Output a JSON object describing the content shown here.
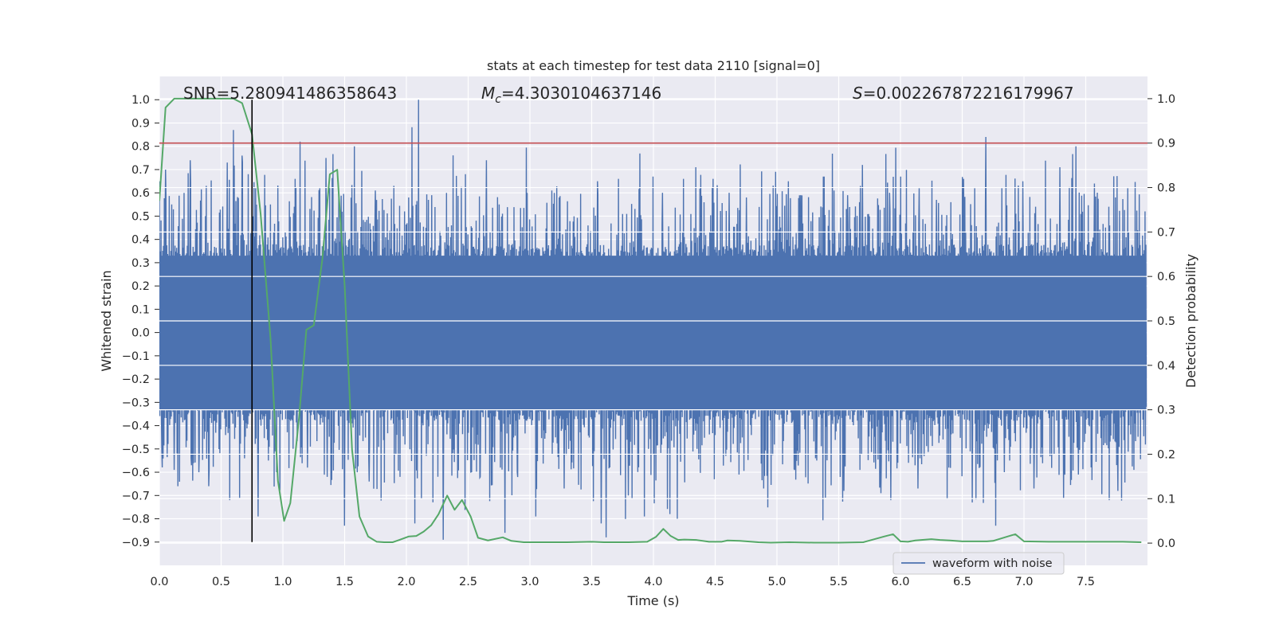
{
  "chart_data": {
    "type": "line",
    "title": "stats at each timestep for test data 2110 [signal=0]",
    "xlabel": "Time (s)",
    "ylabel": "Whitened strain",
    "ylabel_right": "Detection probability",
    "xlim": [
      0.0,
      8.0
    ],
    "ylim": [
      -1.0,
      1.1
    ],
    "ylim_right": [
      -0.05,
      1.05
    ],
    "x_ticks": [
      0.0,
      0.5,
      1.0,
      1.5,
      2.0,
      2.5,
      3.0,
      3.5,
      4.0,
      4.5,
      5.0,
      5.5,
      6.0,
      6.5,
      7.0,
      7.5
    ],
    "x_tick_labels": [
      "0.0",
      "0.5",
      "1.0",
      "1.5",
      "2.0",
      "2.5",
      "3.0",
      "3.5",
      "4.0",
      "4.5",
      "5.0",
      "5.5",
      "6.0",
      "6.5",
      "7.0",
      "7.5"
    ],
    "y_ticks": [
      -0.9,
      -0.8,
      -0.7,
      -0.6,
      -0.5,
      -0.4,
      -0.3,
      -0.2,
      -0.1,
      0.0,
      0.1,
      0.2,
      0.3,
      0.4,
      0.5,
      0.6,
      0.7,
      0.8,
      0.9,
      1.0
    ],
    "y_tick_labels": [
      "−0.9",
      "−0.8",
      "−0.7",
      "−0.6",
      "−0.5",
      "−0.4",
      "−0.3",
      "−0.2",
      "−0.1",
      "0.0",
      "0.1",
      "0.2",
      "0.3",
      "0.4",
      "0.5",
      "0.6",
      "0.7",
      "0.8",
      "0.9",
      "1.0"
    ],
    "y_right_ticks": [
      0.0,
      0.1,
      0.2,
      0.3,
      0.4,
      0.5,
      0.6,
      0.7,
      0.8,
      0.9,
      1.0
    ],
    "y_right_tick_labels": [
      "0.0",
      "0.1",
      "0.2",
      "0.3",
      "0.4",
      "0.5",
      "0.6",
      "0.7",
      "0.8",
      "0.9",
      "1.0"
    ],
    "grid": true,
    "legend_position": "lower-right",
    "annotations": {
      "snr": "SNR=5.280941486358643",
      "mc_symbol": "M",
      "mc_sub": "c",
      "mc_value": "=4.3030104637146",
      "s_symbol": "S",
      "s_value": "=0.002267872216179967"
    },
    "threshold": {
      "axis": "right",
      "y": 0.9,
      "color": "#c44e52"
    },
    "marker_line": {
      "x": 0.75,
      "y_range": [
        -0.9,
        1.0
      ],
      "color": "#000000"
    },
    "series": [
      {
        "name": "waveform with noise",
        "axis": "left",
        "color": "#4c72b0",
        "sample_count": 2400,
        "dense_band": [
          -0.33,
          0.33
        ],
        "peaks_positive": [
          [
            0.0,
            0.65
          ],
          [
            0.05,
            0.7
          ],
          [
            0.1,
            0.55
          ],
          [
            0.2,
            0.6
          ],
          [
            0.25,
            0.74
          ],
          [
            0.38,
            0.63
          ],
          [
            0.55,
            0.73
          ],
          [
            0.6,
            0.87
          ],
          [
            0.67,
            0.76
          ],
          [
            0.72,
            0.68
          ],
          [
            0.78,
            0.62
          ],
          [
            0.9,
            0.55
          ],
          [
            1.1,
            0.66
          ],
          [
            1.14,
            0.82
          ],
          [
            1.3,
            0.62
          ],
          [
            1.35,
            0.75
          ],
          [
            1.58,
            0.8
          ],
          [
            1.75,
            0.61
          ],
          [
            1.9,
            0.63
          ],
          [
            2.02,
            0.58
          ],
          [
            2.1,
            1.0
          ],
          [
            2.18,
            0.57
          ],
          [
            2.48,
            0.68
          ],
          [
            2.6,
            0.61
          ],
          [
            2.65,
            0.74
          ],
          [
            2.9,
            0.71
          ],
          [
            2.98,
            0.6
          ],
          [
            3.2,
            0.6
          ],
          [
            3.55,
            0.65
          ],
          [
            3.72,
            0.66
          ],
          [
            3.8,
            0.58
          ],
          [
            3.93,
            0.6
          ],
          [
            4.0,
            0.67
          ],
          [
            4.08,
            0.6
          ],
          [
            4.25,
            0.66
          ],
          [
            4.35,
            0.71
          ],
          [
            4.49,
            0.66
          ],
          [
            4.62,
            0.6
          ],
          [
            4.76,
            0.58
          ],
          [
            4.9,
            0.68
          ],
          [
            5.1,
            0.65
          ],
          [
            5.2,
            0.59
          ],
          [
            5.39,
            0.67
          ],
          [
            5.58,
            0.59
          ],
          [
            5.7,
            0.72
          ],
          [
            5.92,
            0.6
          ],
          [
            6.01,
            0.67
          ],
          [
            6.16,
            0.62
          ],
          [
            6.3,
            0.57
          ],
          [
            6.52,
            0.66
          ],
          [
            6.61,
            0.62
          ],
          [
            6.7,
            0.84
          ],
          [
            6.83,
            0.62
          ],
          [
            7.0,
            0.65
          ],
          [
            7.3,
            0.71
          ],
          [
            7.43,
            0.8
          ],
          [
            7.58,
            0.64
          ],
          [
            7.75,
            0.58
          ],
          [
            7.85,
            0.62
          ]
        ],
        "peaks_negative": [
          [
            0.02,
            -0.51
          ],
          [
            0.12,
            -0.59
          ],
          [
            0.15,
            -0.66
          ],
          [
            0.26,
            -0.57
          ],
          [
            0.32,
            -0.6
          ],
          [
            0.4,
            -0.66
          ],
          [
            0.57,
            -0.72
          ],
          [
            0.65,
            -0.71
          ],
          [
            0.8,
            -0.79
          ],
          [
            0.95,
            -0.6
          ],
          [
            1.2,
            -0.58
          ],
          [
            1.36,
            -0.62
          ],
          [
            1.5,
            -0.83
          ],
          [
            1.7,
            -0.64
          ],
          [
            1.95,
            -0.62
          ],
          [
            2.07,
            -0.82
          ],
          [
            2.3,
            -0.89
          ],
          [
            2.53,
            -0.6
          ],
          [
            2.6,
            -0.62
          ],
          [
            2.8,
            -0.86
          ],
          [
            2.9,
            -0.6
          ],
          [
            3.05,
            -0.79
          ],
          [
            3.28,
            -0.67
          ],
          [
            3.58,
            -0.82
          ],
          [
            3.62,
            -0.88
          ],
          [
            3.8,
            -0.7
          ],
          [
            3.93,
            -0.79
          ],
          [
            4.14,
            -0.78
          ],
          [
            4.2,
            -0.8
          ],
          [
            4.5,
            -0.63
          ],
          [
            4.7,
            -0.61
          ],
          [
            4.9,
            -0.67
          ],
          [
            5.15,
            -0.59
          ],
          [
            5.33,
            -0.55
          ],
          [
            5.55,
            -0.68
          ],
          [
            5.68,
            -0.59
          ],
          [
            5.85,
            -0.69
          ],
          [
            5.93,
            -0.72
          ],
          [
            6.15,
            -0.67
          ],
          [
            6.4,
            -0.58
          ],
          [
            6.59,
            -0.73
          ],
          [
            6.78,
            -0.83
          ],
          [
            6.85,
            -0.6
          ],
          [
            7.09,
            -0.67
          ],
          [
            7.33,
            -0.71
          ],
          [
            7.45,
            -0.61
          ],
          [
            7.7,
            -0.72
          ],
          [
            7.77,
            -0.68
          ],
          [
            7.9,
            -0.59
          ]
        ]
      },
      {
        "name": "",
        "axis": "right",
        "color": "#55a868",
        "x": [
          0.0,
          0.05,
          0.12,
          0.2,
          0.3,
          0.4,
          0.5,
          0.6,
          0.67,
          0.75,
          0.82,
          0.9,
          0.96,
          1.01,
          1.06,
          1.13,
          1.19,
          1.25,
          1.32,
          1.38,
          1.44,
          1.5,
          1.56,
          1.62,
          1.69,
          1.76,
          1.82,
          1.89,
          1.95,
          2.02,
          2.08,
          2.14,
          2.2,
          2.26,
          2.33,
          2.39,
          2.45,
          2.52,
          2.58,
          2.66,
          2.78,
          2.85,
          2.95,
          3.1,
          3.3,
          3.5,
          3.6,
          3.8,
          3.95,
          4.02,
          4.08,
          4.14,
          4.2,
          4.25,
          4.35,
          4.45,
          4.55,
          4.6,
          4.7,
          4.85,
          4.95,
          5.1,
          5.3,
          5.5,
          5.7,
          5.87,
          5.94,
          6.0,
          6.06,
          6.12,
          6.25,
          6.32,
          6.4,
          6.5,
          6.6,
          6.7,
          6.75,
          6.88,
          6.93,
          7.0,
          7.2,
          7.5,
          7.8,
          7.95
        ],
        "values": [
          0.77,
          0.98,
          1.0,
          1.0,
          1.0,
          1.0,
          1.0,
          1.0,
          0.99,
          0.92,
          0.74,
          0.46,
          0.14,
          0.05,
          0.09,
          0.28,
          0.48,
          0.49,
          0.64,
          0.83,
          0.84,
          0.58,
          0.21,
          0.06,
          0.015,
          0.003,
          0.002,
          0.002,
          0.008,
          0.015,
          0.016,
          0.026,
          0.04,
          0.065,
          0.107,
          0.075,
          0.097,
          0.06,
          0.012,
          0.006,
          0.013,
          0.005,
          0.002,
          0.002,
          0.002,
          0.003,
          0.002,
          0.002,
          0.003,
          0.014,
          0.032,
          0.016,
          0.007,
          0.008,
          0.007,
          0.003,
          0.003,
          0.006,
          0.005,
          0.002,
          0.001,
          0.002,
          0.001,
          0.001,
          0.002,
          0.015,
          0.02,
          0.004,
          0.003,
          0.006,
          0.009,
          0.007,
          0.006,
          0.004,
          0.004,
          0.004,
          0.005,
          0.016,
          0.02,
          0.004,
          0.003,
          0.003,
          0.003,
          0.002
        ]
      }
    ]
  }
}
